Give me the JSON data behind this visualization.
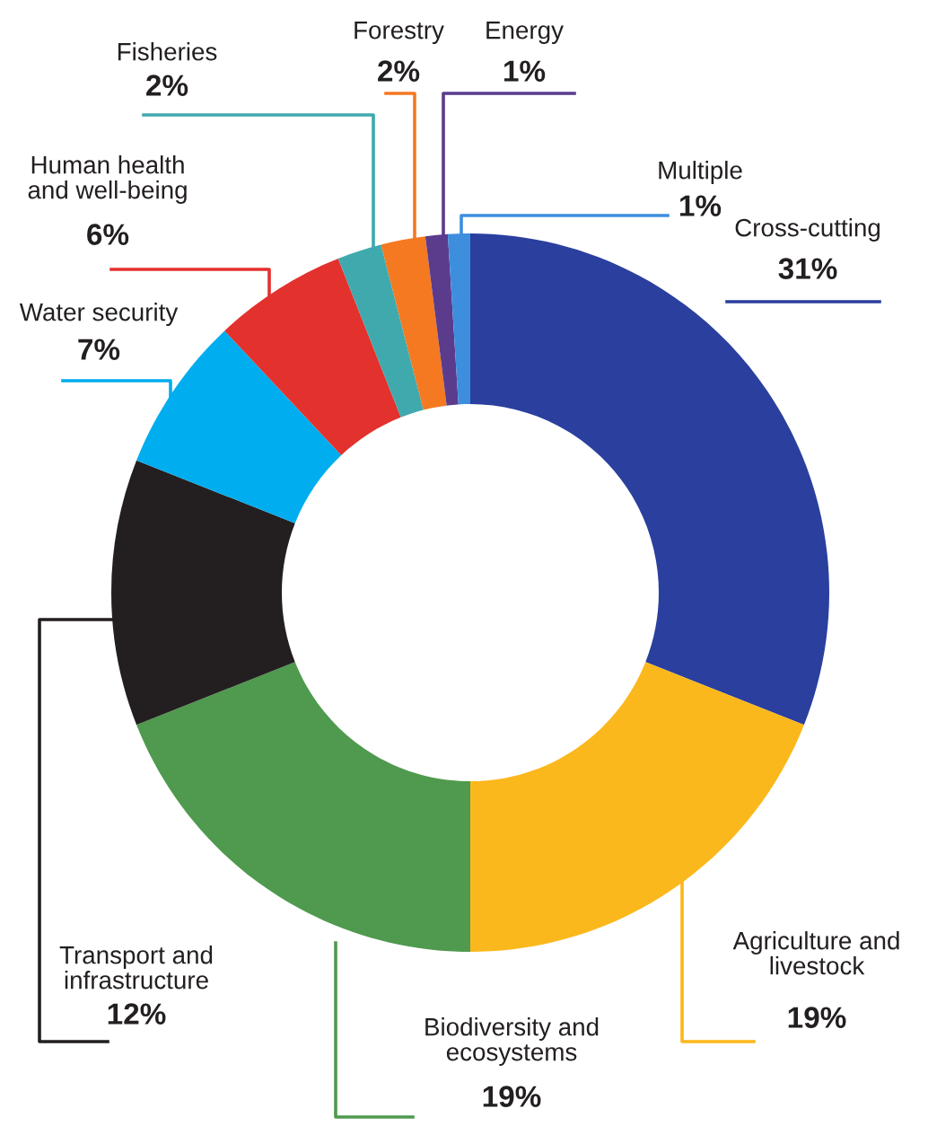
{
  "chart_data": {
    "type": "donut",
    "categories": [
      "Cross-cutting",
      "Agriculture and\nlivestock",
      "Biodiversity and\necosystems",
      "Transport and\ninfrastructure",
      "Water security",
      "Human health\nand well-being",
      "Fisheries",
      "Forestry",
      "Energy",
      "Multiple"
    ],
    "values": [
      31,
      19,
      19,
      12,
      7,
      6,
      2,
      2,
      1,
      1
    ],
    "value_labels": [
      "31%",
      "19%",
      "19%",
      "12%",
      "7%",
      "6%",
      "2%",
      "2%",
      "1%",
      "1%"
    ],
    "colors": [
      "#2a3f9e",
      "#fbb81c",
      "#4f9a4e",
      "#231f20",
      "#00adee",
      "#e3312d",
      "#3fa9ae",
      "#f47920",
      "#5b3b8c",
      "#3e8ede"
    ]
  }
}
